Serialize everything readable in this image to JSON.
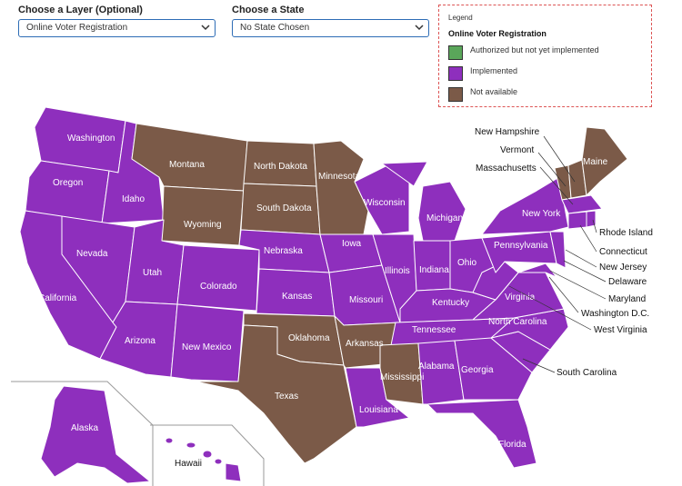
{
  "controls": {
    "layer_label": "Choose a Layer (Optional)",
    "layer_value": "Online Voter Registration",
    "state_label": "Choose a State",
    "state_value": "No State Chosen"
  },
  "legend": {
    "title": "Legend",
    "subtitle": "Online Voter Registration",
    "items": [
      {
        "label": "Authorized but not yet implemented",
        "color": "#5aa65a"
      },
      {
        "label": "Implemented",
        "color": "#8e2fbd"
      },
      {
        "label": "Not available",
        "color": "#7b5a48"
      }
    ]
  },
  "colors": {
    "implemented": "#8e2fbd",
    "not_available": "#7b5a48",
    "border": "#ffffff"
  },
  "states_in_map": [
    "Washington",
    "Oregon",
    "Idaho",
    "Montana",
    "North Dakota",
    "Minnesota",
    "Wisconsin",
    "Michigan",
    "New York",
    "Maine",
    "Wyoming",
    "South Dakota",
    "Nevada",
    "California",
    "Utah",
    "Colorado",
    "Nebraska",
    "Iowa",
    "Illinois",
    "Indiana",
    "Ohio",
    "Pennsylvania",
    "Kansas",
    "Missouri",
    "Kentucky",
    "Virginia",
    "Arizona",
    "New Mexico",
    "Oklahoma",
    "Arkansas",
    "Tennessee",
    "North Carolina",
    "Texas",
    "Mississippi",
    "Alabama",
    "Georgia",
    "Louisiana",
    "Florida",
    "Alaska",
    "Hawaii"
  ],
  "callouts": [
    "New Hampshire",
    "Vermont",
    "Massachusetts",
    "Rhode Island",
    "Connecticut",
    "New Jersey",
    "Delaware",
    "Maryland",
    "Washington D.C.",
    "West Virginia",
    "South Carolina"
  ]
}
